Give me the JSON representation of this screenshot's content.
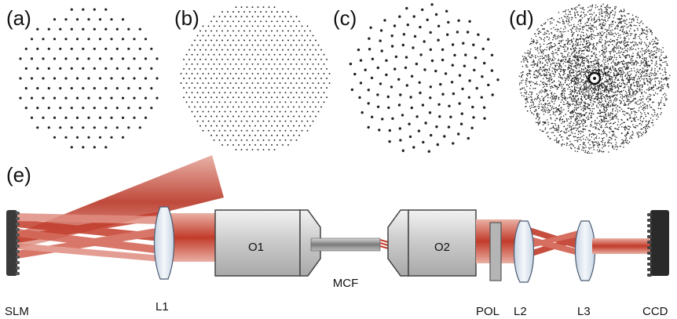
{
  "panels": {
    "a": {
      "label": "(a)"
    },
    "b": {
      "label": "(b)"
    },
    "c": {
      "label": "(c)"
    },
    "d": {
      "label": "(d)"
    },
    "e": {
      "label": "(e)"
    }
  },
  "components": {
    "slm": "SLM",
    "l1": "L1",
    "o1": "O1",
    "mcf": "MCF",
    "o2": "O2",
    "pol": "POL",
    "l2": "L2",
    "l3": "L3",
    "ccd": "CCD"
  },
  "colors": {
    "beam": "#c0392b",
    "beam_light": "#e8a090",
    "dots": "#222222",
    "objective": "#dcdcdc",
    "optic": "#d8e2ee"
  }
}
